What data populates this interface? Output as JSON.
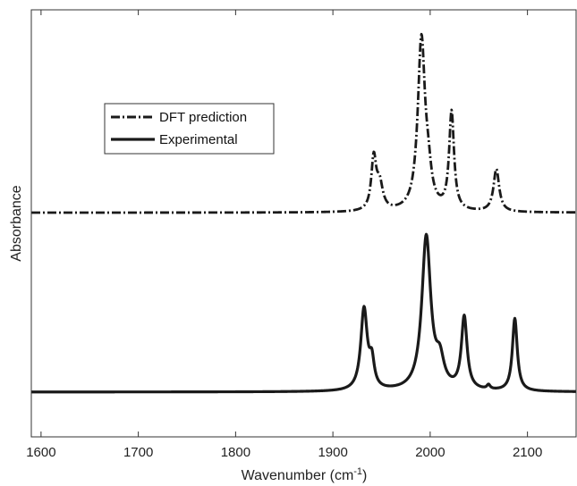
{
  "colors": {
    "line": "#1a1a1a",
    "axis": "#333333",
    "text": "#222222"
  },
  "chart_data": {
    "type": "line",
    "title": "",
    "xlabel": "Wavenumber (cm",
    "xlabel_superscript": "-1",
    "xlabel_close": ")",
    "ylabel": "Absorbance",
    "xlim": [
      1590,
      2150
    ],
    "ylim": [
      0,
      1
    ],
    "x_ticks": [
      1600,
      1700,
      1800,
      1900,
      2000,
      2100
    ],
    "x_tick_labels": [
      "1600",
      "1700",
      "1800",
      "1900",
      "2000",
      "2100"
    ],
    "y_ticks_shown": false,
    "grid": false,
    "legend": {
      "position": "upper-left"
    },
    "series": [
      {
        "name": "DFT prediction",
        "style": "dashdot",
        "baseline": 0.525,
        "peaks": [
          {
            "x": 1942,
            "height": 0.12,
            "width": 3
          },
          {
            "x": 1948,
            "height": 0.06,
            "width": 4
          },
          {
            "x": 1991,
            "height": 0.4,
            "width": 4.5
          },
          {
            "x": 1998,
            "height": 0.06,
            "width": 4
          },
          {
            "x": 2022,
            "height": 0.23,
            "width": 3
          },
          {
            "x": 2068,
            "height": 0.1,
            "width": 3.5
          }
        ]
      },
      {
        "name": "Experimental",
        "style": "solid",
        "baseline": 0.105,
        "peaks": [
          {
            "x": 1932,
            "height": 0.19,
            "width": 4
          },
          {
            "x": 1940,
            "height": 0.06,
            "width": 3
          },
          {
            "x": 1996,
            "height": 0.36,
            "width": 5.5
          },
          {
            "x": 2010,
            "height": 0.06,
            "width": 5
          },
          {
            "x": 2035,
            "height": 0.17,
            "width": 3.5
          },
          {
            "x": 2060,
            "height": 0.01,
            "width": 2
          },
          {
            "x": 2087,
            "height": 0.17,
            "width": 3
          }
        ]
      }
    ]
  }
}
